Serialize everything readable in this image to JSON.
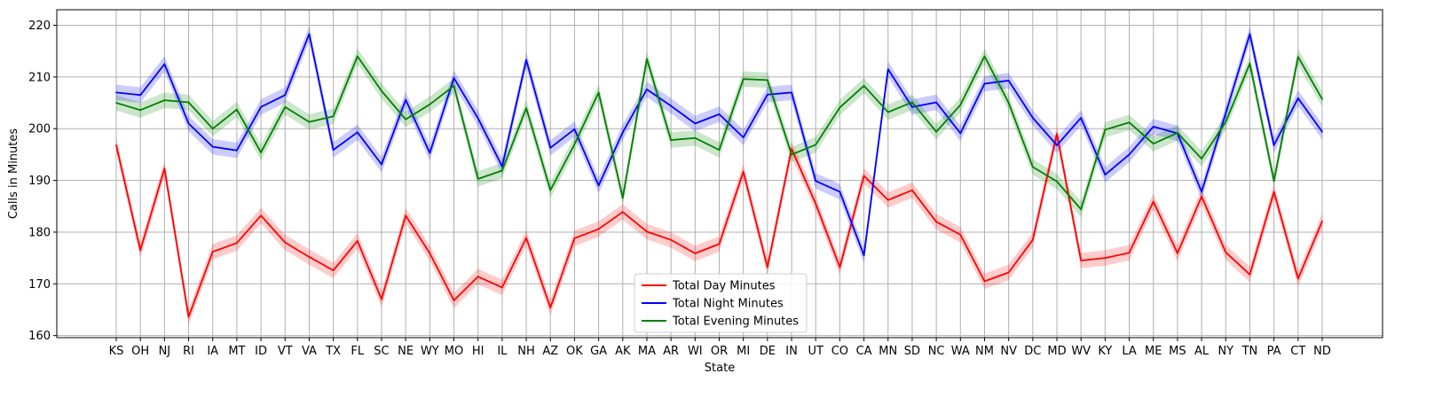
{
  "chart_data": {
    "type": "line",
    "xlabel": "State",
    "ylabel": "Calls in Minutes",
    "ylim": [
      159.6,
      223
    ],
    "yticks": [
      160,
      170,
      180,
      190,
      200,
      210,
      220
    ],
    "grid": true,
    "legend_position": "lower center",
    "categories": [
      "KS",
      "OH",
      "NJ",
      "RI",
      "IA",
      "MT",
      "ID",
      "VT",
      "VA",
      "TX",
      "FL",
      "SC",
      "NE",
      "WY",
      "MO",
      "HI",
      "IL",
      "NH",
      "AZ",
      "OK",
      "GA",
      "AK",
      "MA",
      "AR",
      "WI",
      "OR",
      "MI",
      "DE",
      "IN",
      "UT",
      "CO",
      "CA",
      "MN",
      "SD",
      "NC",
      "WA",
      "NM",
      "NV",
      "DC",
      "MD",
      "WV",
      "KY",
      "LA",
      "ME",
      "MS",
      "AL",
      "NY",
      "TN",
      "PA",
      "CT",
      "ND"
    ],
    "series": [
      {
        "name": "Total Day Minutes",
        "color": "#ff0000",
        "values": [
          196.8,
          176.5,
          192.3,
          163.6,
          176.2,
          177.9,
          183.2,
          178.0,
          175.2,
          172.6,
          178.3,
          167.0,
          183.2,
          175.9,
          166.8,
          171.4,
          169.3,
          178.9,
          165.4,
          178.8,
          180.6,
          183.9,
          180.1,
          178.5,
          175.9,
          177.7,
          191.7,
          173.2,
          196.1,
          185.5,
          173.2,
          190.9,
          186.2,
          188.1,
          182.0,
          179.5,
          170.5,
          172.2,
          178.5,
          199.0,
          174.5,
          175.0,
          176.0,
          185.9,
          175.9,
          186.9,
          176.1,
          171.8,
          187.8,
          171.0,
          182.1
        ]
      },
      {
        "name": "Total Night Minutes",
        "color": "#0000ff",
        "values": [
          207.0,
          206.5,
          212.5,
          201.0,
          196.5,
          195.8,
          204.2,
          206.5,
          218.3,
          195.9,
          199.3,
          193.1,
          205.6,
          195.3,
          209.8,
          202.0,
          192.7,
          213.3,
          196.3,
          199.9,
          189.0,
          199.3,
          207.6,
          204.4,
          201.0,
          202.8,
          198.3,
          206.6,
          207.0,
          189.9,
          187.8,
          175.5,
          211.5,
          204.2,
          205.1,
          199.1,
          208.7,
          209.3,
          202.1,
          196.8,
          202.1,
          191.1,
          195.0,
          200.4,
          199.1,
          187.8,
          203.0,
          218.3,
          196.8,
          205.9,
          199.4
        ]
      },
      {
        "name": "Total Evening Minutes",
        "color": "#008000",
        "values": [
          205.0,
          203.6,
          205.5,
          205.1,
          200.0,
          203.7,
          195.4,
          204.2,
          201.3,
          202.4,
          214.0,
          207.3,
          201.8,
          204.7,
          208.3,
          190.3,
          191.9,
          204.0,
          188.1,
          197.0,
          207.0,
          186.6,
          213.5,
          197.8,
          198.2,
          195.9,
          209.6,
          209.4,
          195.0,
          196.9,
          204.1,
          208.3,
          203.2,
          205.1,
          199.4,
          204.6,
          214.0,
          205.0,
          192.6,
          189.8,
          184.4,
          199.8,
          201.2,
          197.1,
          199.2,
          194.2,
          201.3,
          212.6,
          189.9,
          213.9,
          205.7
        ]
      }
    ]
  }
}
